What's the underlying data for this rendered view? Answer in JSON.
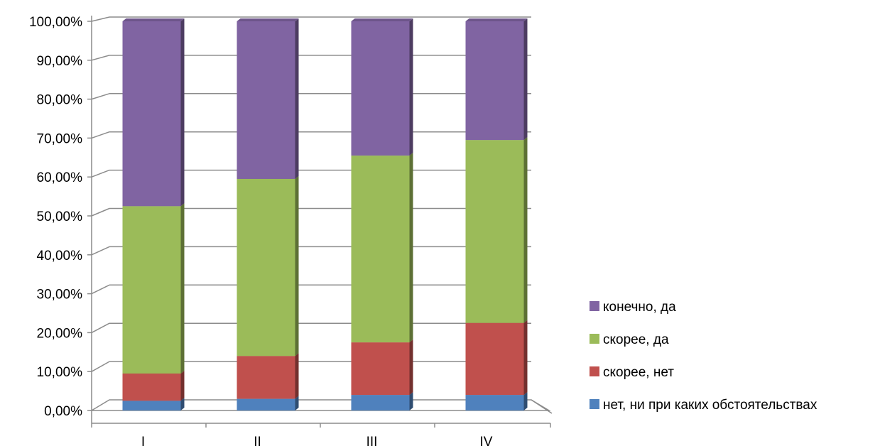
{
  "chart_data": {
    "type": "bar",
    "stacked": true,
    "categories": [
      "I",
      "II",
      "III",
      "IV"
    ],
    "y_tick_labels": [
      "0,00%",
      "10,00%",
      "20,00%",
      "30,00%",
      "40,00%",
      "50,00%",
      "60,00%",
      "70,00%",
      "80,00%",
      "90,00%",
      "100,00%"
    ],
    "ylim": [
      0,
      100
    ],
    "grid": true,
    "legend_position": "right",
    "series": [
      {
        "name": "нет, ни при каких обстоятельствах",
        "color": "#4F81BD",
        "values": [
          2.5,
          3.0,
          4.0,
          4.0
        ]
      },
      {
        "name": "скорее, нет",
        "color": "#C0504D",
        "values": [
          7.0,
          11.0,
          13.5,
          18.5
        ]
      },
      {
        "name": "скорее, да",
        "color": "#9BBB59",
        "values": [
          43.0,
          45.5,
          48.0,
          47.0
        ]
      },
      {
        "name": "конечно, да",
        "color": "#8064A2",
        "values": [
          47.5,
          40.5,
          34.5,
          30.5
        ]
      }
    ],
    "legend_order": [
      "конечно, да",
      "скорее, да",
      "скорее, нет",
      "нет, ни при каких обстоятельствах"
    ]
  }
}
